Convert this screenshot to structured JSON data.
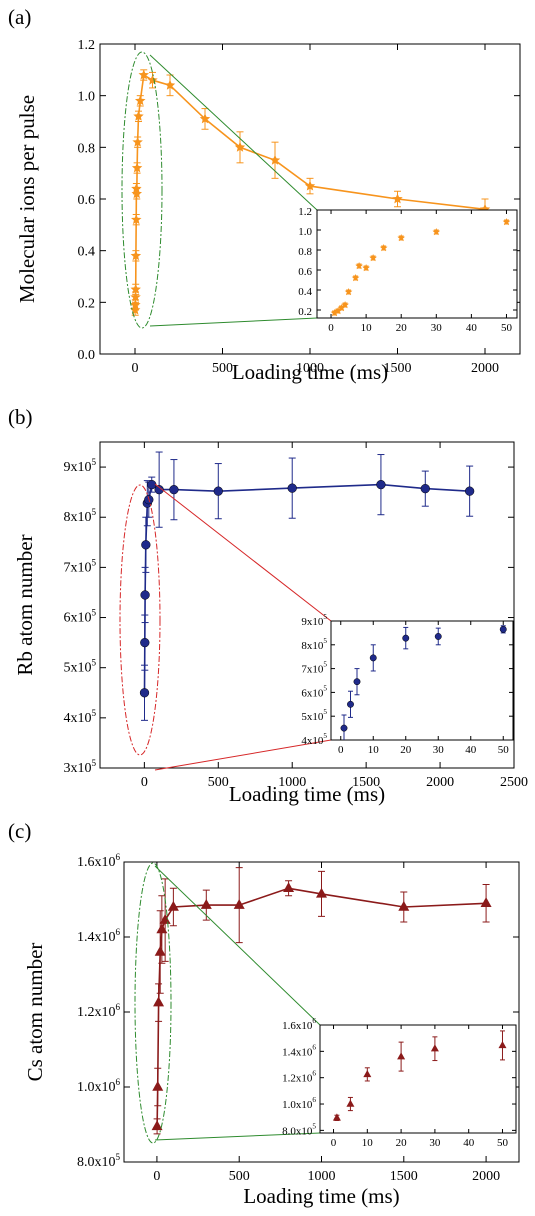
{
  "panels": [
    {
      "panel_label": "(a)",
      "xlabel": "Loading time (ms)",
      "ylabel": "Molecular ions per pulse",
      "color": "#f7941d",
      "marker": "star",
      "main": {
        "xticks": [
          "0",
          "500",
          "1000",
          "1500",
          "2000"
        ],
        "xtick_values": [
          0,
          500,
          1000,
          1500,
          2000
        ],
        "yticks": [
          "0.0",
          "0.2",
          "0.4",
          "0.6",
          "0.8",
          "1.0",
          "1.2"
        ],
        "ytick_values": [
          0.0,
          0.2,
          0.4,
          0.6,
          0.8,
          1.0,
          1.2
        ]
      },
      "inset": {
        "xticks": [
          "0",
          "10",
          "20",
          "30",
          "40",
          "50"
        ],
        "xtick_values": [
          0,
          10,
          20,
          30,
          40,
          50
        ],
        "yticks": [
          "0.2",
          "0.4",
          "0.6",
          "0.8",
          "1.0",
          "1.2"
        ],
        "ytick_values": [
          0.2,
          0.4,
          0.6,
          0.8,
          1.0,
          1.2
        ]
      }
    },
    {
      "panel_label": "(b)",
      "xlabel": "Loading time (ms)",
      "ylabel": "Rb atom number",
      "color": "#1f2a8a",
      "marker": "circle",
      "main": {
        "xticks": [
          "0",
          "500",
          "1000",
          "1500",
          "2000",
          "2500"
        ],
        "xtick_values": [
          0,
          500,
          1000,
          1500,
          2000,
          2500
        ],
        "yticks": [
          [
            "3x10",
            "5"
          ],
          [
            "4x10",
            "5"
          ],
          [
            "5x10",
            "5"
          ],
          [
            "6x10",
            "5"
          ],
          [
            "7x10",
            "5"
          ],
          [
            "8x10",
            "5"
          ],
          [
            "9x10",
            "5"
          ]
        ],
        "ytick_values": [
          300000,
          400000,
          500000,
          600000,
          700000,
          800000,
          900000
        ]
      },
      "inset": {
        "xticks": [
          "0",
          "10",
          "20",
          "30",
          "40",
          "50"
        ],
        "xtick_values": [
          0,
          10,
          20,
          30,
          40,
          50
        ],
        "yticks": [
          [
            "4x10",
            "5"
          ],
          [
            "5x10",
            "5"
          ],
          [
            "6x10",
            "5"
          ],
          [
            "7x10",
            "5"
          ],
          [
            "8x10",
            "5"
          ],
          [
            "9x10",
            "5"
          ]
        ],
        "ytick_values": [
          400000,
          500000,
          600000,
          700000,
          800000,
          900000
        ]
      }
    },
    {
      "panel_label": "(c)",
      "xlabel": "Loading time (ms)",
      "ylabel": "Cs atom number",
      "color": "#8b1a1a",
      "marker": "triangle",
      "main": {
        "xticks": [
          "0",
          "500",
          "1000",
          "1500",
          "2000"
        ],
        "xtick_values": [
          0,
          500,
          1000,
          1500,
          2000
        ],
        "yticks": [
          [
            "8.0x10",
            "5"
          ],
          [
            "1.0x10",
            "6"
          ],
          [
            "1.2x10",
            "6"
          ],
          [
            "1.4x10",
            "6"
          ],
          [
            "1.6x10",
            "6"
          ]
        ],
        "ytick_values": [
          800000,
          1000000,
          1200000,
          1400000,
          1600000
        ]
      },
      "inset": {
        "xticks": [
          "0",
          "10",
          "20",
          "30",
          "40",
          "50"
        ],
        "xtick_values": [
          0,
          10,
          20,
          30,
          40,
          50
        ],
        "yticks": [
          [
            "8.0x10",
            "5"
          ],
          [
            "1.0x10",
            "6"
          ],
          [
            "1.2x10",
            "6"
          ],
          [
            "1.4x10",
            "6"
          ],
          [
            "1.6x10",
            "6"
          ]
        ],
        "ytick_values": [
          800000,
          1000000,
          1200000,
          1400000,
          1600000
        ]
      }
    }
  ],
  "chart_data": [
    {
      "type": "scatter",
      "panel": "(a)",
      "xlabel": "Loading time (ms)",
      "ylabel": "Molecular ions per pulse",
      "xlim": [
        -200,
        2200
      ],
      "ylim": [
        0.0,
        1.2
      ],
      "grid": false,
      "fit": "exponential rise and decay curve",
      "points": [
        {
          "x": 1,
          "y": 0.17,
          "err": 0.02
        },
        {
          "x": 2,
          "y": 0.19,
          "err": 0.02
        },
        {
          "x": 3,
          "y": 0.22,
          "err": 0.02
        },
        {
          "x": 4,
          "y": 0.25,
          "err": 0.02
        },
        {
          "x": 5,
          "y": 0.38,
          "err": 0.02
        },
        {
          "x": 7,
          "y": 0.52,
          "err": 0.02
        },
        {
          "x": 8,
          "y": 0.64,
          "err": 0.02
        },
        {
          "x": 10,
          "y": 0.62,
          "err": 0.02
        },
        {
          "x": 12,
          "y": 0.72,
          "err": 0.02
        },
        {
          "x": 15,
          "y": 0.82,
          "err": 0.02
        },
        {
          "x": 20,
          "y": 0.92,
          "err": 0.02
        },
        {
          "x": 30,
          "y": 0.98,
          "err": 0.02
        },
        {
          "x": 50,
          "y": 1.08,
          "err": 0.02
        },
        {
          "x": 100,
          "y": 1.06,
          "err": 0.03
        },
        {
          "x": 200,
          "y": 1.04,
          "err": 0.04
        },
        {
          "x": 400,
          "y": 0.91,
          "err": 0.04
        },
        {
          "x": 600,
          "y": 0.8,
          "err": 0.06
        },
        {
          "x": 800,
          "y": 0.75,
          "err": 0.07
        },
        {
          "x": 1000,
          "y": 0.65,
          "err": 0.03
        },
        {
          "x": 1500,
          "y": 0.6,
          "err": 0.03
        },
        {
          "x": 2000,
          "y": 0.56,
          "err": 0.04
        }
      ],
      "inset": {
        "xlim": [
          -4,
          53
        ],
        "ylim": [
          0.12,
          1.2
        ]
      }
    },
    {
      "type": "scatter",
      "panel": "(b)",
      "xlabel": "Loading time (ms)",
      "ylabel": "Rb atom number",
      "xlim": [
        -300,
        2500
      ],
      "ylim": [
        300000,
        950000
      ],
      "grid": false,
      "fit": "saturating rise curve",
      "points": [
        {
          "x": 1,
          "y": 450000,
          "err": 55000
        },
        {
          "x": 3,
          "y": 550000,
          "err": 55000
        },
        {
          "x": 5,
          "y": 645000,
          "err": 55000
        },
        {
          "x": 10,
          "y": 745000,
          "err": 55000
        },
        {
          "x": 20,
          "y": 828000,
          "err": 45000
        },
        {
          "x": 30,
          "y": 835000,
          "err": 35000
        },
        {
          "x": 50,
          "y": 865000,
          "err": 15000
        },
        {
          "x": 100,
          "y": 855000,
          "err": 75000
        },
        {
          "x": 200,
          "y": 855000,
          "err": 60000
        },
        {
          "x": 500,
          "y": 852000,
          "err": 55000
        },
        {
          "x": 1000,
          "y": 858000,
          "err": 60000
        },
        {
          "x": 1600,
          "y": 865000,
          "err": 60000
        },
        {
          "x": 1900,
          "y": 857000,
          "err": 35000
        },
        {
          "x": 2200,
          "y": 852000,
          "err": 50000
        }
      ],
      "inset": {
        "xlim": [
          -3,
          53
        ],
        "ylim": [
          400000,
          900000
        ]
      }
    },
    {
      "type": "scatter",
      "panel": "(c)",
      "xlabel": "Loading time (ms)",
      "ylabel": "Cs atom number",
      "xlim": [
        -200,
        2200
      ],
      "ylim": [
        800000,
        1600000
      ],
      "grid": false,
      "fit": "saturating rise curve",
      "points": [
        {
          "x": 1,
          "y": 895000,
          "err": 20000
        },
        {
          "x": 5,
          "y": 1000000,
          "err": 50000
        },
        {
          "x": 10,
          "y": 1225000,
          "err": 50000
        },
        {
          "x": 20,
          "y": 1360000,
          "err": 110000
        },
        {
          "x": 30,
          "y": 1420000,
          "err": 90000
        },
        {
          "x": 50,
          "y": 1445000,
          "err": 110000
        },
        {
          "x": 100,
          "y": 1480000,
          "err": 50000
        },
        {
          "x": 300,
          "y": 1485000,
          "err": 40000
        },
        {
          "x": 500,
          "y": 1485000,
          "err": 100000
        },
        {
          "x": 800,
          "y": 1530000,
          "err": 20000
        },
        {
          "x": 1000,
          "y": 1515000,
          "err": 60000
        },
        {
          "x": 1500,
          "y": 1480000,
          "err": 40000
        },
        {
          "x": 2000,
          "y": 1490000,
          "err": 50000
        }
      ],
      "inset": {
        "xlim": [
          -4,
          54
        ],
        "ylim": [
          780000,
          1600000
        ]
      }
    }
  ]
}
